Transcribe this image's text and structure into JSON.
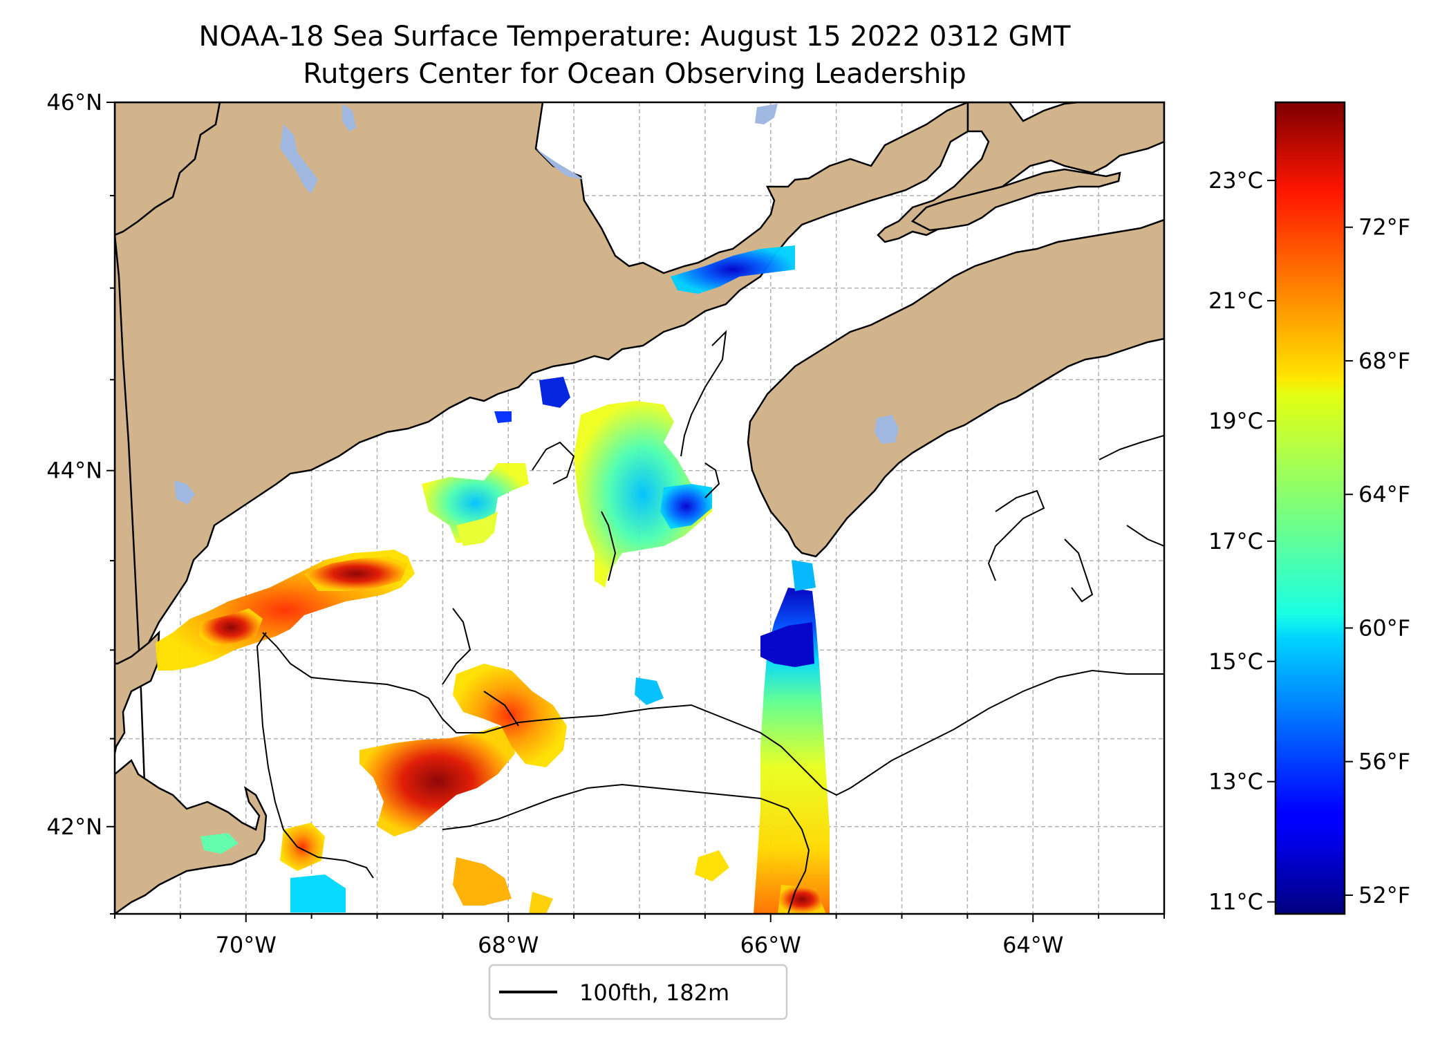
{
  "title": "NOAA-18 Sea Surface Temperature: August 15 2022 0312 GMT",
  "subtitle": "Rutgers Center for Ocean Observing Leadership",
  "map": {
    "lon_range": [
      -71.0,
      -63.0
    ],
    "lat_range": [
      41.5,
      46.0
    ],
    "lon_tick_labels": [
      "70°W",
      "68°W",
      "66°W",
      "64°W"
    ],
    "lat_tick_labels": [
      "46°N",
      "44°N",
      "42°N"
    ],
    "gridlines": true,
    "colors": {
      "land": "#d2b48c",
      "ocean": "#ffffff",
      "lakes": "#a0b8e0",
      "coastline": "#000000",
      "grid": "#b0b0b0"
    }
  },
  "colorbar": {
    "colormap": "jet",
    "celsius_labels": [
      "23°C",
      "21°C",
      "19°C",
      "17°C",
      "15°C",
      "13°C",
      "11°C"
    ],
    "fahrenheit_labels": [
      "72°F",
      "68°F",
      "64°F",
      "60°F",
      "56°F",
      "52°F"
    ]
  },
  "legend": {
    "label": "100fth, 182m",
    "line_color": "#000000"
  }
}
